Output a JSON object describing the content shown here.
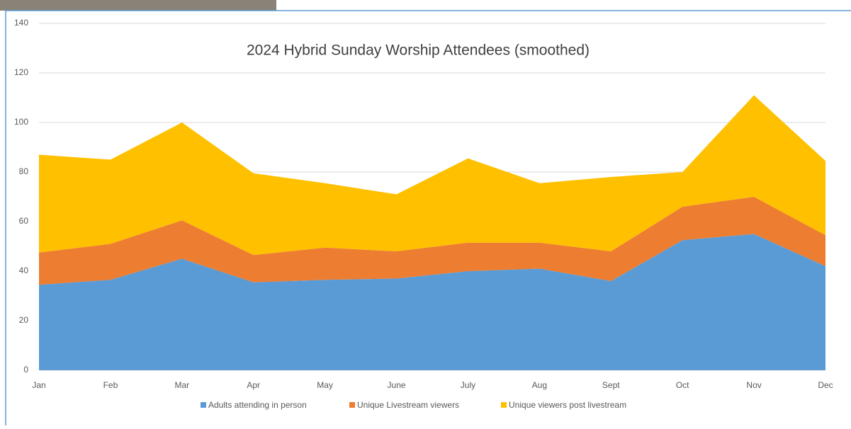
{
  "chart_data": {
    "type": "stacked-area",
    "title": "2024 Hybrid Sunday Worship Attendees (smoothed)",
    "categories": [
      "Jan",
      "Feb",
      "Mar",
      "Apr",
      "May",
      "June",
      "July",
      "Aug",
      "Sept",
      "Oct",
      "Nov",
      "Dec"
    ],
    "series": [
      {
        "name": "Adults attending in person",
        "color": "#5b9bd5",
        "values": [
          34.5,
          36.5,
          45,
          35.5,
          36.5,
          37,
          40,
          41,
          36,
          52.5,
          55,
          42
        ]
      },
      {
        "name": "Unique Livestream viewers",
        "color": "#ed7d31",
        "values": [
          13,
          14.5,
          15.5,
          11,
          13,
          11,
          11.5,
          10.5,
          12,
          13.5,
          15,
          12.5
        ]
      },
      {
        "name": "Unique viewers post livestream",
        "color": "#ffc000",
        "values": [
          39.5,
          34,
          39.5,
          33,
          26,
          23,
          34,
          24,
          30,
          14,
          41,
          30
        ]
      }
    ],
    "ylim": [
      0,
      140
    ],
    "yticks": [
      0,
      20,
      40,
      60,
      80,
      100,
      120,
      140
    ],
    "grid": true,
    "legend": "bottom"
  }
}
